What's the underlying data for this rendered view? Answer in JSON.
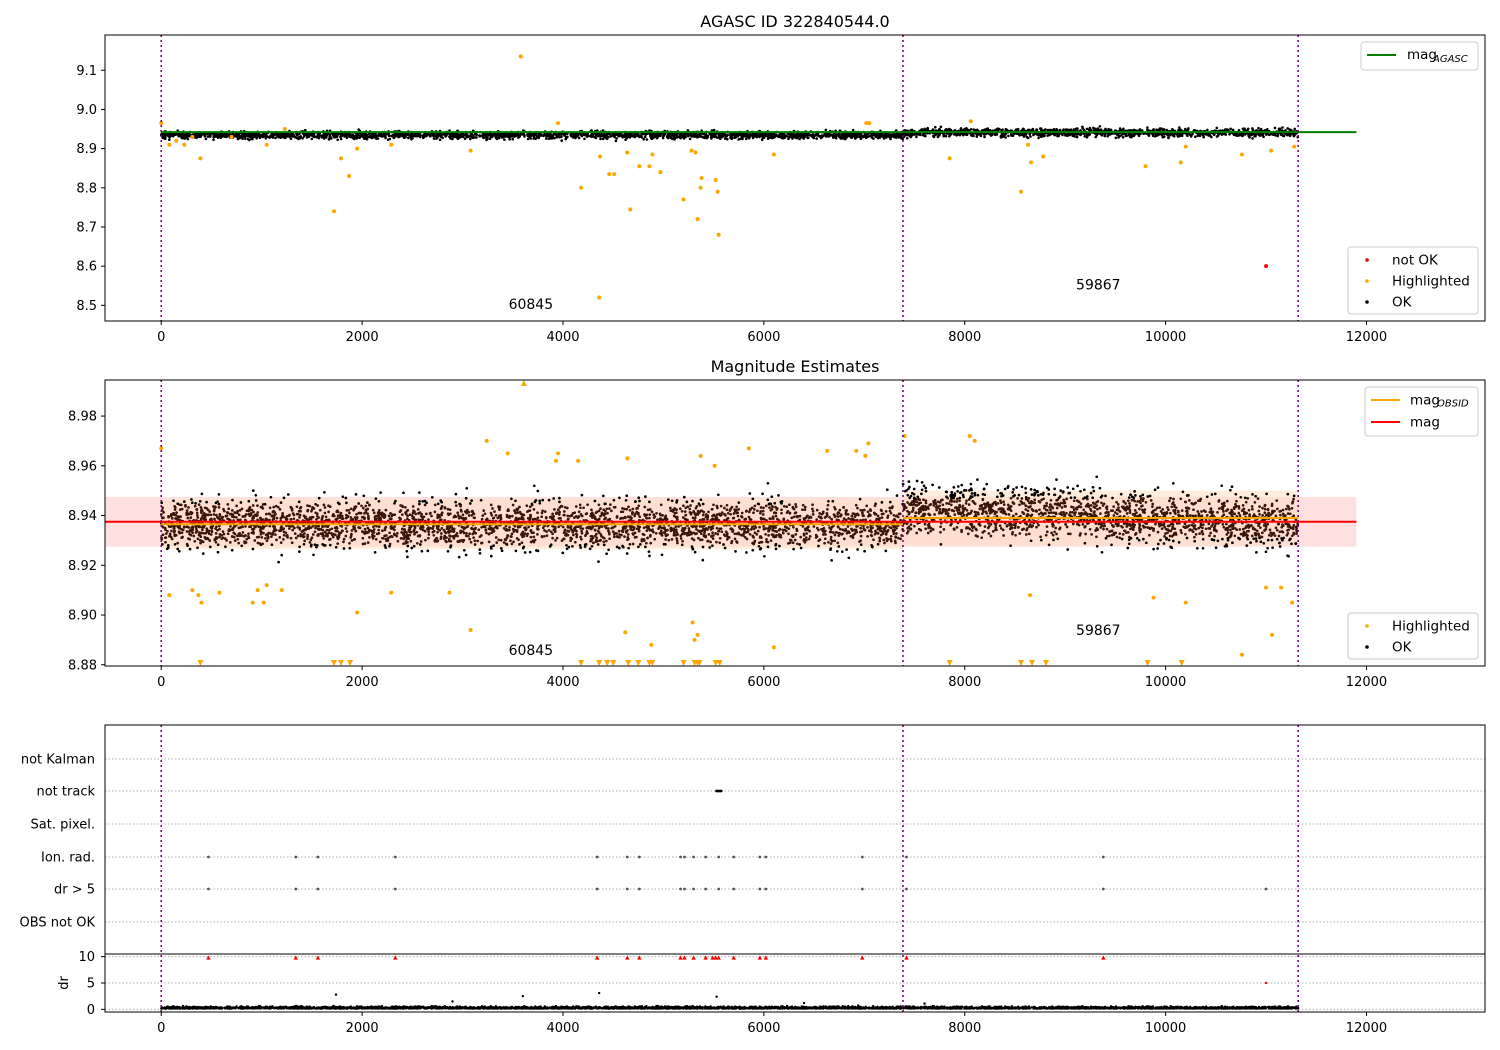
{
  "figure_title": "AGASC ID 322840544.0",
  "colors": {
    "ok": "#000000",
    "highlighted": "#ffa500",
    "not_ok": "#ff0000",
    "agasc_line": "#008000",
    "mag_line": "#ff0000",
    "obsid_line": "#ffa500",
    "boundary": "#800080",
    "band_red": "#ffcccc",
    "band_orange": "#ffe0c2"
  },
  "chart_data": [
    {
      "type": "scatter",
      "name": "agasc",
      "title": "AGASC ID 322840544.0",
      "xlim": [
        -560,
        13180
      ],
      "ylim": [
        8.46,
        9.19
      ],
      "xticks": [
        0,
        2000,
        4000,
        6000,
        8000,
        10000,
        12000
      ],
      "xtick_labels": [
        "0",
        "2000",
        "4000",
        "6000",
        "8000",
        "10000",
        "12000"
      ],
      "yticks": [
        8.5,
        8.6,
        8.7,
        8.8,
        8.9,
        9.0,
        9.1
      ],
      "ytick_labels": [
        "8.5",
        "8.6",
        "8.7",
        "8.8",
        "8.9",
        "9.0",
        "9.1"
      ],
      "obs_boundaries": [
        0,
        7385,
        11320
      ],
      "obs_labels": [
        {
          "text": "60845",
          "x": 3680,
          "y": 8.49
        },
        {
          "text": "59867",
          "x": 9330,
          "y": 8.54
        }
      ],
      "mag_agasc": 8.942,
      "mag_agasc_xrange": [
        0,
        11900
      ],
      "legend_main": {
        "label_base": "mag",
        "label_sub": "AGASC"
      },
      "legend_status": [
        "not OK",
        "Highlighted",
        "OK"
      ],
      "ok_bands": [
        {
          "x0": 0,
          "x1": 7385,
          "center": 8.935,
          "half": 0.015
        },
        {
          "x0": 7385,
          "x1": 11320,
          "center": 8.941,
          "half": 0.016
        }
      ],
      "highlighted_points": [
        [
          0,
          8.965
        ],
        [
          80,
          8.91
        ],
        [
          150,
          8.92
        ],
        [
          230,
          8.91
        ],
        [
          310,
          8.93
        ],
        [
          390,
          8.875
        ],
        [
          700,
          8.93
        ],
        [
          1050,
          8.91
        ],
        [
          1230,
          8.95
        ],
        [
          1720,
          8.74
        ],
        [
          1790,
          8.875
        ],
        [
          1870,
          8.83
        ],
        [
          1950,
          8.9
        ],
        [
          2290,
          8.91
        ],
        [
          3080,
          8.895
        ],
        [
          3580,
          9.135
        ],
        [
          3950,
          8.965
        ],
        [
          4180,
          8.8
        ],
        [
          4360,
          8.52
        ],
        [
          4370,
          8.88
        ],
        [
          4460,
          8.835
        ],
        [
          4510,
          8.835
        ],
        [
          4640,
          8.89
        ],
        [
          4670,
          8.745
        ],
        [
          4760,
          8.855
        ],
        [
          4860,
          8.855
        ],
        [
          4890,
          8.885
        ],
        [
          4970,
          8.84
        ],
        [
          5200,
          8.77
        ],
        [
          5280,
          8.895
        ],
        [
          5320,
          8.89
        ],
        [
          5340,
          8.72
        ],
        [
          5370,
          8.8
        ],
        [
          5380,
          8.825
        ],
        [
          5520,
          8.82
        ],
        [
          5540,
          8.79
        ],
        [
          5550,
          8.68
        ],
        [
          6100,
          8.885
        ],
        [
          7020,
          8.965
        ],
        [
          7050,
          8.965
        ],
        [
          7850,
          8.875
        ],
        [
          8060,
          8.97
        ],
        [
          8560,
          8.79
        ],
        [
          8630,
          8.91
        ],
        [
          8660,
          8.865
        ],
        [
          8780,
          8.88
        ],
        [
          9800,
          8.855
        ],
        [
          10150,
          8.865
        ],
        [
          10200,
          8.905
        ],
        [
          10760,
          8.885
        ],
        [
          11050,
          8.895
        ],
        [
          11280,
          8.905
        ]
      ],
      "not_ok_points": [
        [
          11000,
          8.6
        ]
      ]
    },
    {
      "type": "scatter",
      "name": "estimates",
      "title": "Magnitude Estimates",
      "xlim": [
        -560,
        13180
      ],
      "ylim": [
        8.8795,
        8.9945
      ],
      "xticks": [
        0,
        2000,
        4000,
        6000,
        8000,
        10000,
        12000
      ],
      "xtick_labels": [
        "0",
        "2000",
        "4000",
        "6000",
        "8000",
        "10000",
        "12000"
      ],
      "yticks": [
        8.88,
        8.9,
        8.92,
        8.94,
        8.96,
        8.98
      ],
      "ytick_labels": [
        "8.88",
        "8.90",
        "8.92",
        "8.94",
        "8.96",
        "8.98"
      ],
      "obs_boundaries": [
        0,
        7385,
        11320
      ],
      "obs_labels": [
        {
          "text": "60845",
          "x": 3680,
          "y": 8.884
        },
        {
          "text": "59867",
          "x": 9330,
          "y": 8.892
        }
      ],
      "mag": 8.9375,
      "mag_band": [
        8.9275,
        8.9475
      ],
      "mag_xrange": [
        -560,
        11900
      ],
      "obsid_segments": [
        {
          "x0": 0,
          "x1": 7385,
          "mag": 8.9365,
          "band": [
            8.9265,
            8.9465
          ]
        },
        {
          "x0": 7385,
          "x1": 11320,
          "mag": 8.939,
          "band": [
            8.928,
            8.95
          ]
        }
      ],
      "legend_lines": [
        {
          "label_base": "mag",
          "label_sub": "OBSID"
        },
        {
          "label_base": "mag",
          "label_sub": ""
        }
      ],
      "legend_status": [
        "Highlighted",
        "OK"
      ],
      "highlighted_points": [
        [
          0,
          8.967
        ],
        [
          80,
          8.908
        ],
        [
          310,
          8.91
        ],
        [
          370,
          8.908
        ],
        [
          400,
          8.905
        ],
        [
          580,
          8.909
        ],
        [
          910,
          8.905
        ],
        [
          960,
          8.91
        ],
        [
          1020,
          8.905
        ],
        [
          1050,
          8.912
        ],
        [
          1200,
          8.91
        ],
        [
          1950,
          8.901
        ],
        [
          2290,
          8.909
        ],
        [
          2870,
          8.909
        ],
        [
          3080,
          8.894
        ],
        [
          3240,
          8.97
        ],
        [
          3450,
          8.965
        ],
        [
          3930,
          8.962
        ],
        [
          3950,
          8.965
        ],
        [
          4150,
          8.962
        ],
        [
          4620,
          8.893
        ],
        [
          4640,
          8.963
        ],
        [
          4880,
          8.888
        ],
        [
          5290,
          8.897
        ],
        [
          5310,
          8.89
        ],
        [
          5340,
          8.892
        ],
        [
          5370,
          8.964
        ],
        [
          5510,
          8.96
        ],
        [
          5850,
          8.967
        ],
        [
          6100,
          8.887
        ],
        [
          6630,
          8.966
        ],
        [
          6920,
          8.966
        ],
        [
          7010,
          8.964
        ],
        [
          7040,
          8.969
        ],
        [
          7400,
          8.972
        ],
        [
          8050,
          8.972
        ],
        [
          8100,
          8.97
        ],
        [
          8650,
          8.908
        ],
        [
          9880,
          8.907
        ],
        [
          10200,
          8.905
        ],
        [
          10760,
          8.884
        ],
        [
          11000,
          8.911
        ],
        [
          11060,
          8.892
        ],
        [
          11150,
          8.911
        ],
        [
          11260,
          8.905
        ]
      ],
      "clipped_high": [
        3610
      ],
      "clipped_low": [
        390,
        1720,
        1790,
        1880,
        4180,
        4360,
        4440,
        4500,
        4650,
        4750,
        4860,
        4890,
        5200,
        5310,
        5340,
        5360,
        5520,
        5560,
        7850,
        8560,
        8670,
        8810,
        9820,
        10160
      ]
    },
    {
      "type": "scatter",
      "name": "flags",
      "xlim": [
        -560,
        13180
      ],
      "xticks": [
        0,
        2000,
        4000,
        6000,
        8000,
        10000,
        12000
      ],
      "xtick_labels": [
        "0",
        "2000",
        "4000",
        "6000",
        "8000",
        "10000",
        "12000"
      ],
      "obs_boundaries": [
        0,
        7385,
        11320
      ],
      "flag_rows": [
        "not Kalman",
        "not track",
        "Sat. pixel.",
        "Ion. rad.",
        "dr > 5",
        "OBS not OK"
      ],
      "not_track_points": [
        5530,
        5545,
        5560,
        5575
      ],
      "ion_rad_points": [
        470,
        1340,
        1560,
        2330,
        4340,
        4640,
        4760,
        5170,
        5210,
        5300,
        5420,
        5550,
        5700,
        5960,
        6020,
        6980,
        7420,
        9380
      ],
      "dr5_points": [
        470,
        1340,
        1560,
        2330,
        4340,
        4640,
        4760,
        5170,
        5210,
        5300,
        5420,
        5550,
        5700,
        5960,
        6020,
        6980,
        7420,
        9380,
        11000
      ],
      "dr_ylim": [
        -0.5,
        10.5
      ],
      "dr_yticks": [
        0,
        5,
        10
      ],
      "dr_ytick_labels": [
        "0",
        "5",
        "10"
      ],
      "dr_ylabel": "dr",
      "dr_high_points": [
        470,
        1340,
        1560,
        2330,
        4340,
        4640,
        4760,
        5170,
        5210,
        5300,
        5420,
        5490,
        5520,
        5550,
        5700,
        5960,
        6020,
        6980,
        7420,
        9380
      ],
      "dr_outliers": [
        [
          1740,
          2.8
        ],
        [
          3600,
          2.5
        ],
        [
          4360,
          3.1
        ],
        [
          5530,
          2.4
        ],
        [
          11000,
          5.0
        ],
        [
          2900,
          1.5
        ],
        [
          6400,
          1.2
        ],
        [
          7600,
          1.1
        ]
      ]
    }
  ]
}
